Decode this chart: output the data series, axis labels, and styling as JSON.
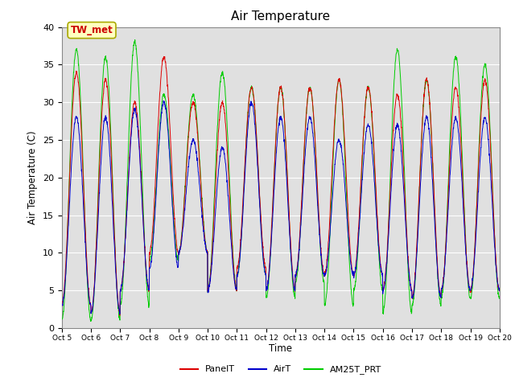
{
  "title": "Air Temperature",
  "ylabel": "Air Temperature (C)",
  "xlabel": "Time",
  "annotation": "TW_met",
  "ylim": [
    0,
    40
  ],
  "series_colors": {
    "PanelT": "#dd0000",
    "AirT": "#0000cc",
    "AM25T_PRT": "#00cc00"
  },
  "background_color": "#e0e0e0",
  "annotation_box_facecolor": "#ffffc0",
  "annotation_text_color": "#cc0000",
  "annotation_border_color": "#aaaa00",
  "panel_mins": [
    3,
    2,
    5,
    10,
    10,
    5,
    8,
    5,
    7,
    7,
    7,
    5,
    4,
    5,
    5
  ],
  "panel_maxs": [
    34,
    33,
    30,
    36,
    30,
    30,
    32,
    32,
    32,
    33,
    32,
    31,
    33,
    32,
    33
  ],
  "air_mins": [
    3,
    2,
    5,
    8,
    10,
    5,
    7,
    5,
    7,
    7,
    7,
    5,
    4,
    5,
    5
  ],
  "air_maxs": [
    28,
    28,
    29,
    30,
    25,
    24,
    30,
    28,
    28,
    25,
    27,
    27,
    28,
    28,
    28
  ],
  "am25_mins": [
    1,
    1,
    3,
    9,
    10,
    5,
    7,
    4,
    6,
    3,
    5,
    2,
    3,
    4,
    4
  ],
  "am25_maxs": [
    37,
    36,
    38,
    31,
    31,
    34,
    32,
    32,
    32,
    33,
    32,
    37,
    33,
    36,
    35
  ],
  "num_days": 15,
  "points_per_day": 144,
  "figsize": [
    6.4,
    4.8
  ],
  "dpi": 100
}
